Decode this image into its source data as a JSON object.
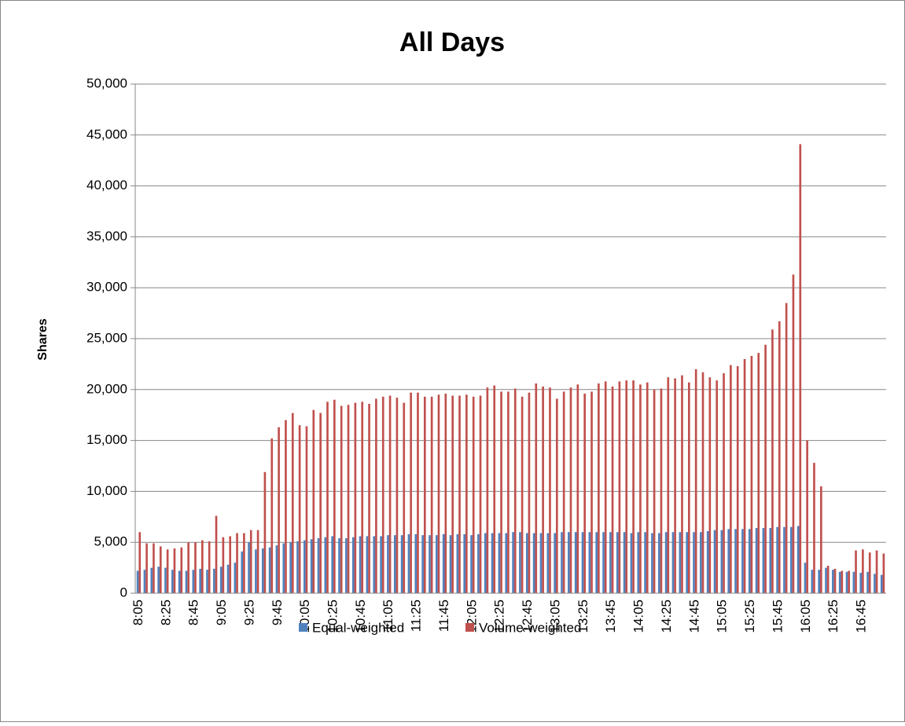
{
  "chart_data": {
    "type": "bar",
    "title": "All Days",
    "y_label": "Shares",
    "categories": [
      "8:05",
      null,
      null,
      null,
      "8:25",
      null,
      null,
      null,
      "8:45",
      null,
      null,
      null,
      "9:05",
      null,
      null,
      null,
      "9:25",
      null,
      null,
      null,
      "9:45",
      null,
      null,
      null,
      "10:05",
      null,
      null,
      null,
      "10:25",
      null,
      null,
      null,
      "10:45",
      null,
      null,
      null,
      "11:05",
      null,
      null,
      null,
      "11:25",
      null,
      null,
      null,
      "11:45",
      null,
      null,
      null,
      "12:05",
      null,
      null,
      null,
      "12:25",
      null,
      null,
      null,
      "12:45",
      null,
      null,
      null,
      "13:05",
      null,
      null,
      null,
      "13:25",
      null,
      null,
      null,
      "13:45",
      null,
      null,
      null,
      "14:05",
      null,
      null,
      null,
      "14:25",
      null,
      null,
      null,
      "14:45",
      null,
      null,
      null,
      "15:05",
      null,
      null,
      null,
      "15:25",
      null,
      null,
      null,
      "15:45",
      null,
      null,
      null,
      "16:05",
      null,
      null,
      null,
      "16:25",
      null,
      null,
      null,
      "16:45",
      null,
      null,
      null
    ],
    "series": [
      {
        "name": "Equal-weighted",
        "color": "#4f81bd",
        "values": [
          2200,
          2300,
          2500,
          2600,
          2500,
          2300,
          2200,
          2200,
          2300,
          2400,
          2300,
          2400,
          2600,
          2800,
          3000,
          4100,
          5000,
          4300,
          4400,
          4500,
          4700,
          4900,
          5000,
          5100,
          5200,
          5300,
          5400,
          5500,
          5600,
          5400,
          5400,
          5500,
          5600,
          5600,
          5600,
          5600,
          5700,
          5700,
          5700,
          5800,
          5800,
          5700,
          5700,
          5700,
          5800,
          5700,
          5800,
          5800,
          5700,
          5800,
          5900,
          5900,
          5900,
          5900,
          6000,
          6000,
          5900,
          5900,
          5900,
          5900,
          5900,
          6000,
          6000,
          6000,
          6000,
          6000,
          6000,
          6000,
          6000,
          6000,
          6000,
          5900,
          6000,
          6000,
          5900,
          5900,
          6000,
          6000,
          6000,
          6000,
          6000,
          6000,
          6100,
          6200,
          6200,
          6300,
          6300,
          6300,
          6300,
          6400,
          6400,
          6400,
          6500,
          6500,
          6500,
          6600,
          3000,
          2300,
          2300,
          2500,
          2300,
          2100,
          2100,
          2100,
          2000,
          2100,
          1900,
          1800
        ]
      },
      {
        "name": "Volume-weighted",
        "color": "#c0504d",
        "values": [
          6000,
          4900,
          4900,
          4600,
          4300,
          4400,
          4500,
          5000,
          5000,
          5200,
          5100,
          7600,
          5500,
          5600,
          5900,
          5900,
          6200,
          6200,
          11900,
          15200,
          16300,
          17000,
          17700,
          16500,
          16400,
          18000,
          17700,
          18800,
          19000,
          18400,
          18500,
          18700,
          18800,
          18600,
          19100,
          19300,
          19400,
          19200,
          18700,
          19700,
          19700,
          19300,
          19300,
          19500,
          19600,
          19400,
          19400,
          19500,
          19300,
          19400,
          20200,
          20400,
          19800,
          19800,
          20100,
          19300,
          19700,
          20600,
          20300,
          20200,
          19100,
          19800,
          20200,
          20500,
          19600,
          19800,
          20600,
          20800,
          20300,
          20800,
          20900,
          20900,
          20500,
          20700,
          20000,
          20100,
          21200,
          21100,
          21400,
          20700,
          22000,
          21700,
          21200,
          20900,
          21600,
          22400,
          22300,
          23000,
          23300,
          23600,
          24400,
          25900,
          26700,
          28500,
          31300,
          44100,
          15000,
          12800,
          10500,
          2700,
          2400,
          2200,
          2200,
          4200,
          4300,
          4000,
          4200,
          3900
        ]
      }
    ],
    "ylim": [
      0,
      50000
    ],
    "yticks": [
      0,
      {
        "value": 5000,
        "label": "5,000"
      },
      {
        "value": 10000,
        "label": "10,000"
      },
      {
        "value": 15000,
        "label": "15,000"
      },
      {
        "value": 20000,
        "label": "20,000"
      },
      {
        "value": 25000,
        "label": "25,000"
      },
      {
        "value": 30000,
        "label": "30,000"
      },
      {
        "value": 35000,
        "label": "35,000"
      },
      {
        "value": 40000,
        "label": "40,000"
      },
      {
        "value": 45000,
        "label": "45,000"
      },
      {
        "value": 50000,
        "label": "50,000"
      }
    ],
    "grid": true,
    "legend": "bottom"
  }
}
